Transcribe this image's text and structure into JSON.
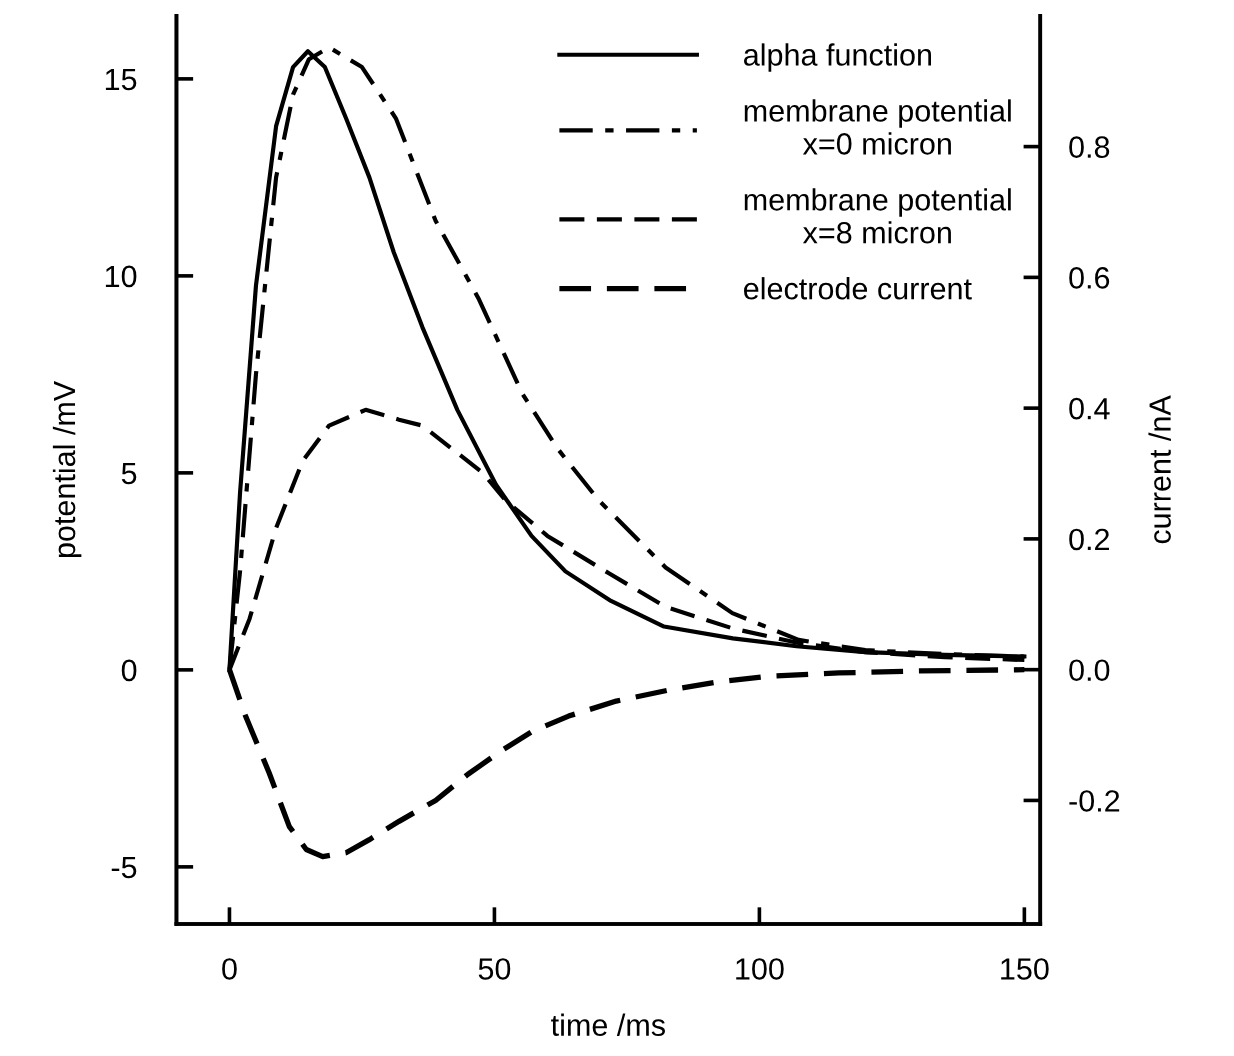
{
  "chart_data": {
    "type": "line",
    "xlabel": "time /ms",
    "ylabel": "potential /mV",
    "y2label": "current /nA",
    "xlim": [
      -10,
      153
    ],
    "xticks": [
      0,
      50,
      100,
      150
    ],
    "ylim": [
      -6.45,
      16.6
    ],
    "yticks": [
      -5,
      0,
      5,
      10,
      15
    ],
    "y2lim": [
      -0.389,
      1.0
    ],
    "y2ticks": [
      {
        "value": -0.2,
        "label": "-0.2"
      },
      {
        "value": 0,
        "label": "0.0"
      },
      {
        "value": 0.2,
        "label": "0.2"
      },
      {
        "value": 0.4,
        "label": "0.4"
      },
      {
        "value": 0.6,
        "label": "0.6"
      },
      {
        "value": 0.8,
        "label": "0.8"
      }
    ],
    "grid": false,
    "legend": "top right",
    "series": [
      {
        "name": "alpha function",
        "color": "#000000",
        "line_style": "solid",
        "x": [
          0,
          2,
          5,
          8.8,
          12,
          14.8,
          18,
          22,
          26.4,
          31,
          36.4,
          43,
          50.3,
          57,
          63.4,
          72,
          82,
          95,
          107,
          120,
          135,
          150
        ],
        "values": [
          0,
          4.5,
          9.75,
          13.8,
          15.3,
          15.7,
          15.3,
          14.0,
          12.5,
          10.6,
          8.7,
          6.6,
          4.7,
          3.4,
          2.5,
          1.75,
          1.1,
          0.8,
          0.6,
          0.45,
          0.38,
          0.34
        ]
      },
      {
        "name": "membrane potential\nx=0 micron",
        "color": "#000000",
        "line_style": "dashdot",
        "x": [
          0,
          2,
          5,
          8.8,
          12,
          15,
          18.8,
          25,
          31.4,
          38.9,
          47.1,
          55.3,
          62,
          69.7,
          82.3,
          94.9,
          107.4,
          120,
          135,
          150
        ],
        "values": [
          0,
          2.5,
          7.5,
          12.5,
          14.6,
          15.5,
          15.8,
          15.3,
          14.0,
          11.4,
          9.4,
          7.0,
          5.6,
          4.3,
          2.6,
          1.44,
          0.76,
          0.5,
          0.4,
          0.34
        ]
      },
      {
        "name": "membrane potential\nx=8 micron",
        "color": "#000000",
        "line_style": "dashed",
        "x": [
          0,
          3.8,
          8.8,
          13.8,
          18.8,
          25.7,
          32,
          36.4,
          47.8,
          52.1,
          60,
          71.6,
          82.3,
          95,
          107.4,
          120,
          135,
          150
        ],
        "values": [
          0,
          1.3,
          3.6,
          5.3,
          6.2,
          6.6,
          6.35,
          6.2,
          5.0,
          4.3,
          3.4,
          2.45,
          1.6,
          1.05,
          0.68,
          0.45,
          0.32,
          0.25
        ]
      },
      {
        "name": "electrode current",
        "color": "#000000",
        "line_style": "dashed",
        "axis": "y2",
        "x": [
          0,
          3,
          7.5,
          11.3,
          14.5,
          17.6,
          22,
          26.4,
          32,
          38.9,
          45,
          51.5,
          57,
          64,
          73,
          83,
          92,
          101.8,
          115,
          130,
          150
        ],
        "values": [
          0,
          -0.07,
          -0.158,
          -0.24,
          -0.275,
          -0.286,
          -0.28,
          -0.26,
          -0.232,
          -0.2,
          -0.16,
          -0.123,
          -0.095,
          -0.071,
          -0.048,
          -0.031,
          -0.019,
          -0.01,
          -0.005,
          -0.002,
          0
        ]
      }
    ]
  }
}
